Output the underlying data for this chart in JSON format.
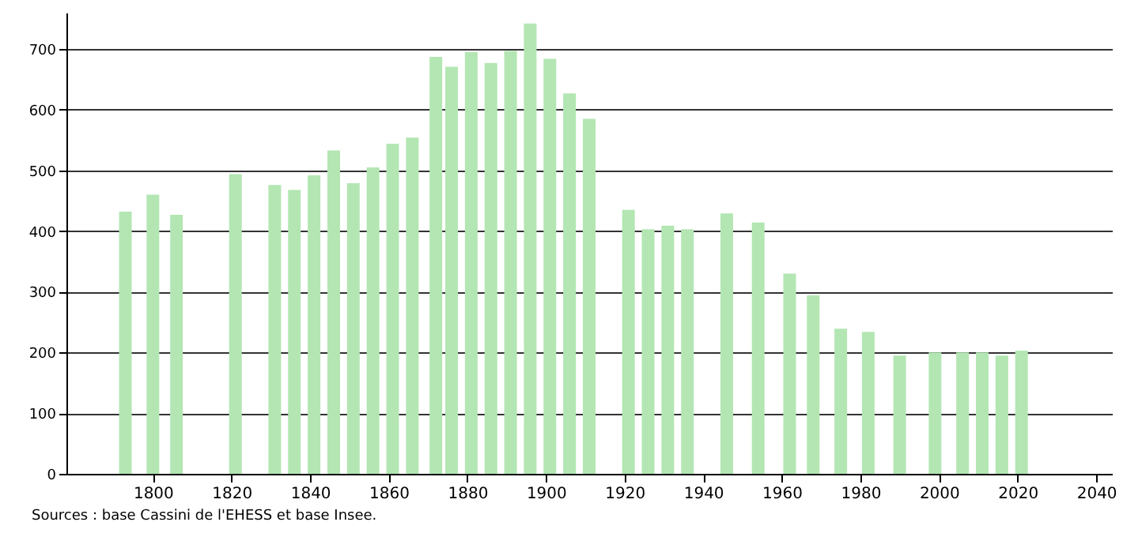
{
  "chart_data": {
    "type": "bar",
    "x": [
      1793,
      1800,
      1806,
      1821,
      1831,
      1836,
      1841,
      1846,
      1851,
      1856,
      1861,
      1866,
      1872,
      1876,
      1881,
      1886,
      1891,
      1896,
      1901,
      1906,
      1911,
      1921,
      1926,
      1931,
      1936,
      1946,
      1954,
      1962,
      1968,
      1975,
      1982,
      1990,
      1999,
      2006,
      2011,
      2016,
      2021
    ],
    "values": [
      432,
      460,
      427,
      494,
      476,
      468,
      492,
      533,
      479,
      505,
      544,
      554,
      687,
      671,
      695,
      677,
      697,
      742,
      684,
      627,
      585,
      435,
      403,
      409,
      403,
      429,
      414,
      330,
      294,
      239,
      234,
      195,
      200,
      200,
      200,
      195,
      203
    ],
    "color": "#b3e6b3",
    "xlim": [
      1778,
      2044
    ],
    "xticks": [
      1800,
      1820,
      1840,
      1860,
      1880,
      1900,
      1920,
      1940,
      1960,
      1980,
      2000,
      2020,
      2040
    ],
    "ylim": [
      0,
      760
    ],
    "yticks": [
      0,
      100,
      200,
      300,
      400,
      500,
      600,
      700
    ],
    "grid": "y",
    "annotations": [
      "Sources : base Cassini de l'EHESS et base Insee."
    ]
  }
}
